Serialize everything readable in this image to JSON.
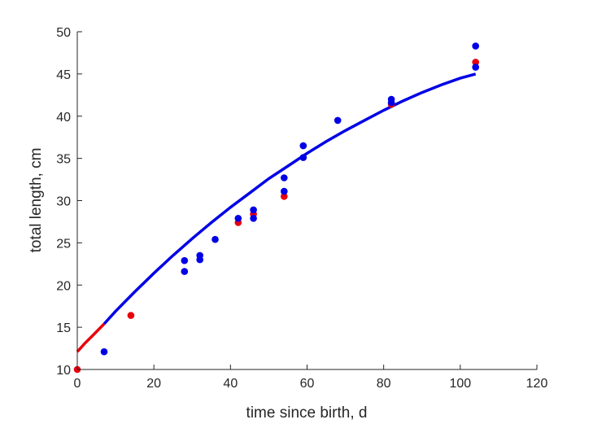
{
  "chart_data": {
    "type": "scatter",
    "title": "",
    "xlabel": "time since birth, d",
    "ylabel": "total length, cm",
    "xlim": [
      0,
      120
    ],
    "ylim": [
      10,
      50
    ],
    "xticks": [
      "0",
      "20",
      "40",
      "60",
      "80",
      "100",
      "120"
    ],
    "yticks": [
      "10",
      "15",
      "20",
      "25",
      "30",
      "35",
      "40",
      "45",
      "50"
    ],
    "grid": false,
    "legend": "none",
    "colors": {
      "red": "#e8000b",
      "blue": "#0000e6",
      "axis": "#262626"
    },
    "series": [
      {
        "color": "#e8000b",
        "kind": "points",
        "x": [
          0,
          14,
          42,
          46,
          54,
          82,
          104
        ],
        "y": [
          10.0,
          16.4,
          27.4,
          28.4,
          30.5,
          41.4,
          46.4
        ]
      },
      {
        "color": "#0000e6",
        "kind": "points",
        "x": [
          7,
          28,
          28,
          32,
          32,
          36,
          42,
          46,
          46,
          54,
          54,
          59,
          59,
          68,
          82,
          82,
          104,
          104
        ],
        "y": [
          12.1,
          21.6,
          22.9,
          23.0,
          23.5,
          25.4,
          27.9,
          27.9,
          28.9,
          31.1,
          32.7,
          35.1,
          36.5,
          39.5,
          41.6,
          42.0,
          45.8,
          48.3
        ]
      },
      {
        "color": "#e8000b",
        "kind": "line",
        "x": [
          0,
          2,
          4,
          7
        ],
        "y": [
          12.1,
          13.1,
          14.0,
          15.4
        ]
      },
      {
        "color": "#0000e6",
        "kind": "line",
        "x": [
          7,
          10,
          15,
          20,
          25,
          30,
          35,
          40,
          45,
          50,
          55,
          60,
          65,
          70,
          75,
          80,
          85,
          90,
          95,
          100,
          104
        ],
        "y": [
          15.4,
          16.9,
          19.2,
          21.4,
          23.5,
          25.5,
          27.4,
          29.2,
          30.9,
          32.6,
          34.1,
          35.6,
          37.0,
          38.3,
          39.5,
          40.7,
          41.8,
          42.8,
          43.7,
          44.5,
          45.0
        ]
      }
    ]
  }
}
